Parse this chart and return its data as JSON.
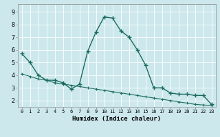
{
  "xlabel": "Humidex (Indice chaleur)",
  "bg_color": "#cce8ec",
  "grid_color": "#ffffff",
  "line_color": "#1a6b5e",
  "xlim": [
    -0.5,
    23.5
  ],
  "ylim": [
    1.5,
    9.6
  ],
  "yticks": [
    2,
    3,
    4,
    5,
    6,
    7,
    8,
    9
  ],
  "xticks": [
    0,
    1,
    2,
    3,
    4,
    5,
    6,
    7,
    8,
    9,
    10,
    11,
    12,
    13,
    14,
    15,
    16,
    17,
    18,
    19,
    20,
    21,
    22,
    23
  ],
  "line1_x": [
    0,
    1,
    2,
    3,
    4,
    5,
    6,
    7,
    8,
    9,
    10,
    11,
    12,
    13,
    14,
    15,
    16,
    17,
    18,
    19,
    20,
    21,
    22,
    23
  ],
  "line1_y": [
    5.7,
    5.0,
    4.0,
    3.6,
    3.6,
    3.4,
    2.9,
    3.3,
    5.9,
    7.4,
    8.6,
    8.5,
    7.5,
    7.0,
    6.0,
    4.8,
    3.0,
    3.0,
    2.6,
    2.5,
    2.5,
    2.4,
    2.4,
    1.7
  ],
  "line2_x": [
    0,
    1,
    2,
    3,
    4,
    5,
    6,
    7,
    8,
    9,
    10,
    11,
    12,
    13,
    14,
    15,
    16,
    17,
    18,
    19,
    20,
    21,
    22,
    23
  ],
  "line2_y": [
    4.1,
    3.9,
    3.7,
    3.6,
    3.4,
    3.3,
    3.2,
    3.1,
    3.0,
    2.9,
    2.8,
    2.7,
    2.6,
    2.5,
    2.4,
    2.3,
    2.2,
    2.1,
    2.0,
    1.9,
    1.8,
    1.7,
    1.65,
    1.6
  ],
  "xtick_fontsize": 5.0,
  "ytick_fontsize": 6.0,
  "xlabel_fontsize": 6.5
}
